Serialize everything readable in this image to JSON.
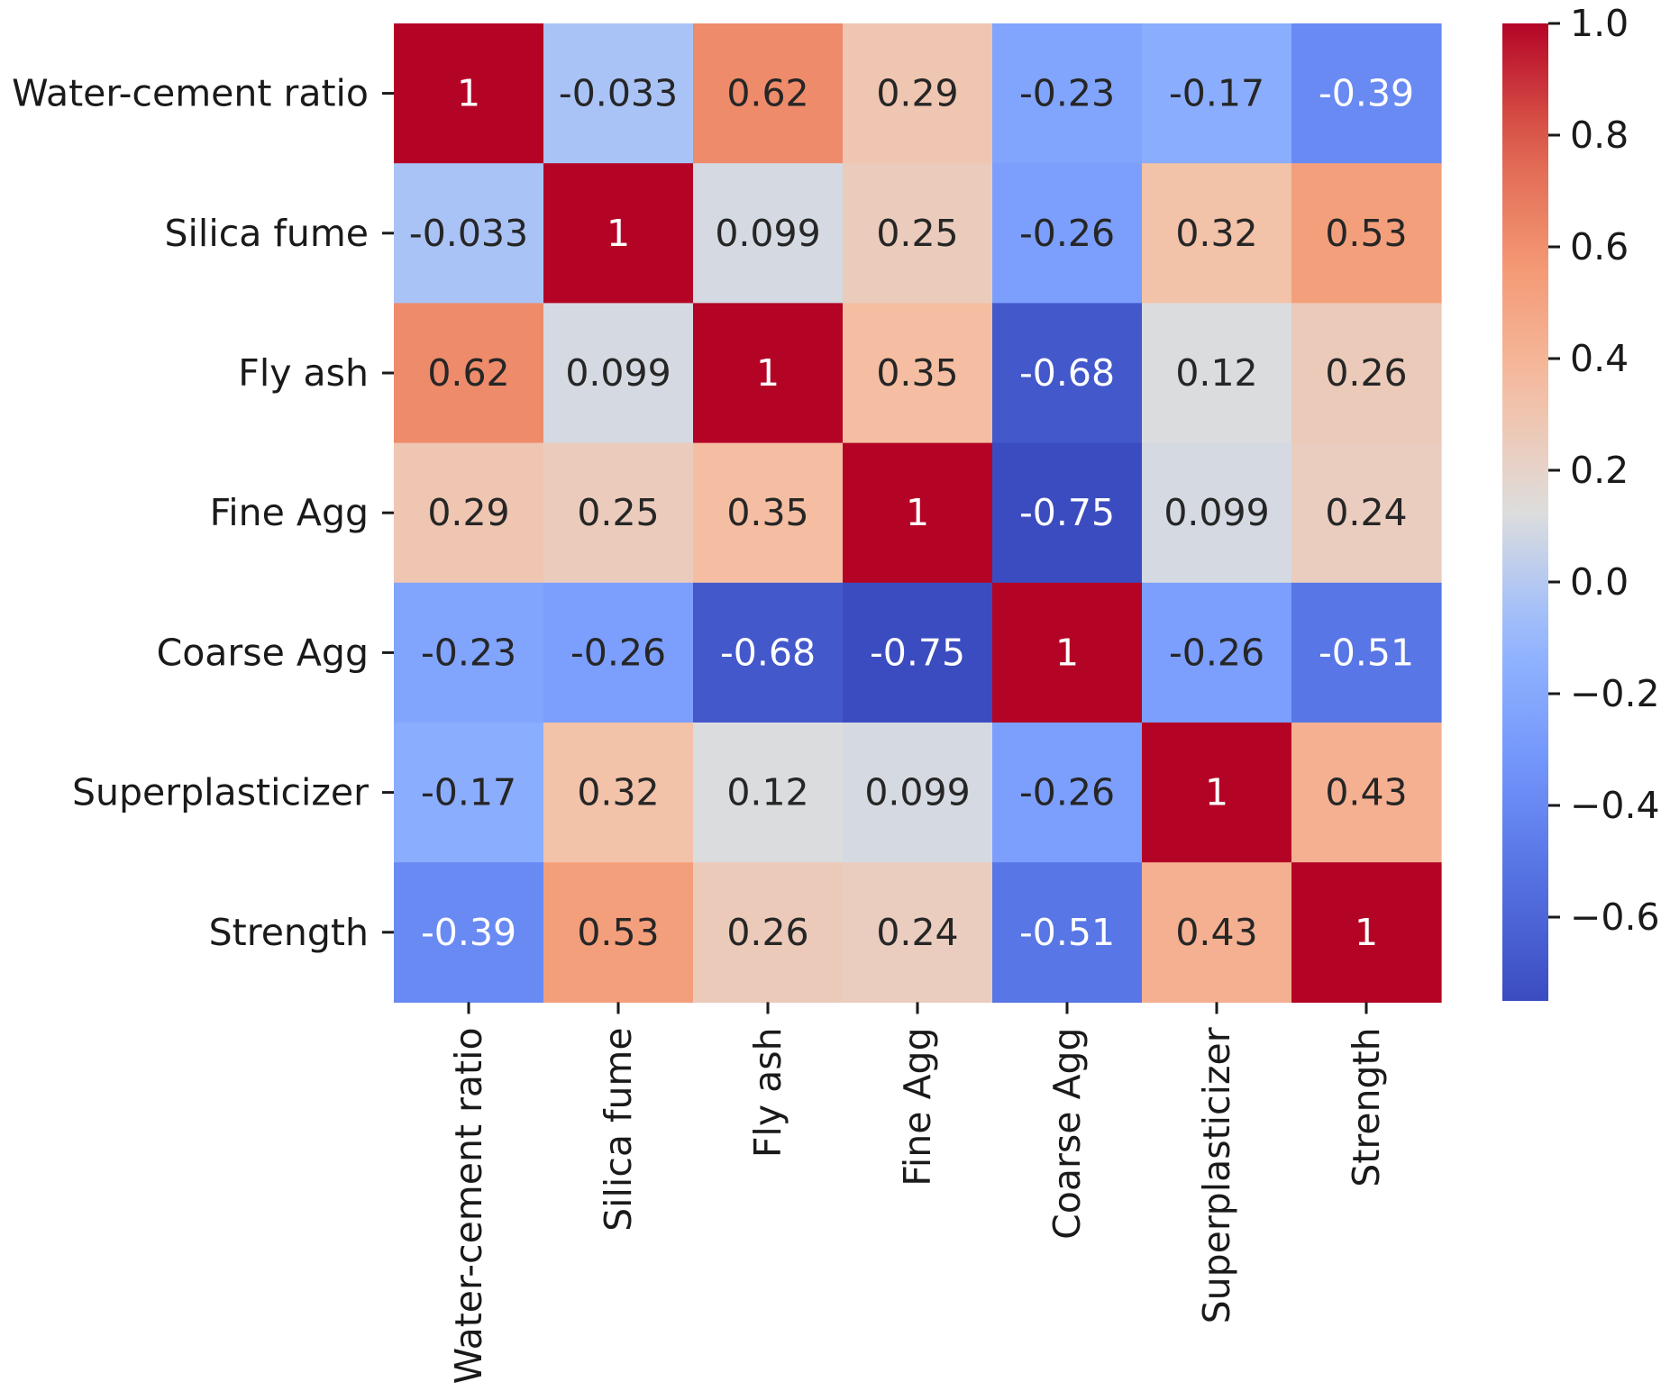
{
  "chart_data": {
    "type": "heatmap",
    "title": "",
    "xlabel": "",
    "ylabel": "",
    "row_labels": [
      "Water-cement ratio",
      "Silica fume",
      "Fly ash",
      "Fine Agg",
      "Coarse Agg",
      "Superplasticizer",
      "Strength"
    ],
    "col_labels": [
      "Water-cement ratio",
      "Silica fume",
      "Fly ash",
      "Fine Agg",
      "Coarse Agg",
      "Superplasticizer",
      "Strength"
    ],
    "values": [
      [
        1,
        -0.033,
        0.62,
        0.29,
        -0.23,
        -0.17,
        -0.39
      ],
      [
        -0.033,
        1,
        0.099,
        0.25,
        -0.26,
        0.32,
        0.53
      ],
      [
        0.62,
        0.099,
        1,
        0.35,
        -0.68,
        0.12,
        0.26
      ],
      [
        0.29,
        0.25,
        0.35,
        1,
        -0.75,
        0.099,
        0.24
      ],
      [
        -0.23,
        -0.26,
        -0.68,
        -0.75,
        1,
        -0.26,
        -0.51
      ],
      [
        -0.17,
        0.32,
        0.12,
        0.099,
        -0.26,
        1,
        0.43
      ],
      [
        -0.39,
        0.53,
        0.26,
        0.24,
        -0.51,
        0.43,
        1
      ]
    ],
    "annotations": [
      [
        "1",
        "-0.033",
        "0.62",
        "0.29",
        "-0.23",
        "-0.17",
        "-0.39"
      ],
      [
        "-0.033",
        "1",
        "0.099",
        "0.25",
        "-0.26",
        "0.32",
        "0.53"
      ],
      [
        "0.62",
        "0.099",
        "1",
        "0.35",
        "-0.68",
        "0.12",
        "0.26"
      ],
      [
        "0.29",
        "0.25",
        "0.35",
        "1",
        "-0.75",
        "0.099",
        "0.24"
      ],
      [
        "-0.23",
        "-0.26",
        "-0.68",
        "-0.75",
        "1",
        "-0.26",
        "-0.51"
      ],
      [
        "-0.17",
        "0.32",
        "0.12",
        "0.099",
        "-0.26",
        "1",
        "0.43"
      ],
      [
        "-0.39",
        "0.53",
        "0.26",
        "0.24",
        "-0.51",
        "0.43",
        "1"
      ]
    ],
    "colormap": "coolwarm",
    "vmin": -0.75,
    "vmax": 1.0,
    "colorbar": {
      "ticks": [
        1.0,
        0.8,
        0.6,
        0.4,
        0.2,
        0.0,
        -0.2,
        -0.4,
        -0.6
      ],
      "tick_labels": [
        "1.0",
        "0.8",
        "0.6",
        "0.4",
        "0.2",
        "0.0",
        "−0.2",
        "−0.4",
        "−0.6"
      ],
      "placement": "right"
    },
    "colors": {
      "low": "#3b4cc0",
      "mid": "#dddddd",
      "high": "#b40426",
      "dark_text": "#262626",
      "light_text": "#ffffff"
    }
  }
}
